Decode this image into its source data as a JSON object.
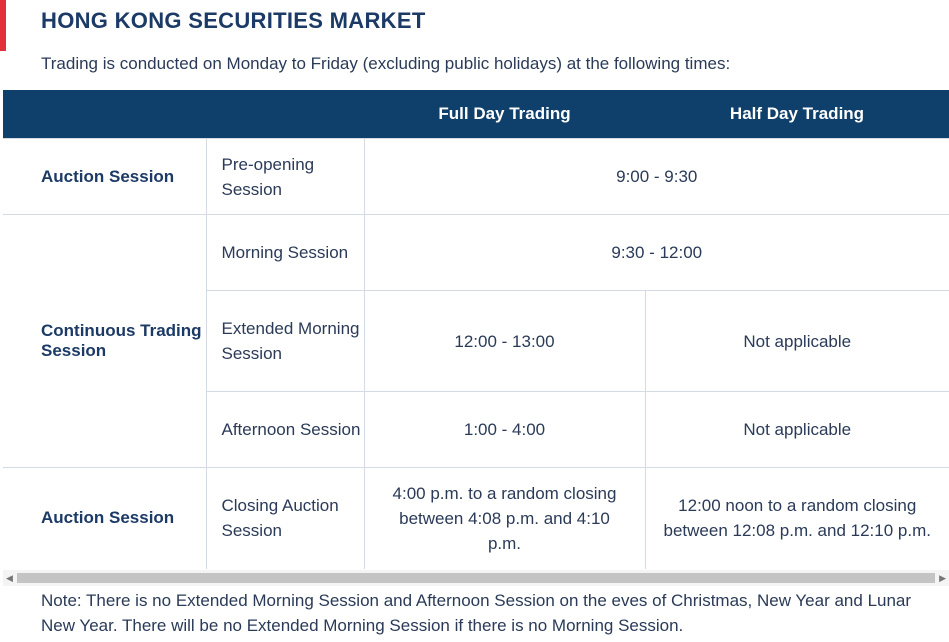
{
  "title": "HONG KONG SECURITIES MARKET",
  "intro": "Trading is conducted on Monday to Friday (excluding public holidays) at the following times:",
  "table": {
    "headers": {
      "col1": "",
      "col2": "",
      "full_day": "Full Day Trading",
      "half_day": "Half Day Trading"
    },
    "rows": {
      "preopen": {
        "session_group": "Auction Session",
        "session": "Pre-opening Session",
        "time": "9:00 - 9:30"
      },
      "morning": {
        "session_group": "Continuous Trading Session",
        "session": "Morning Session",
        "time": "9:30 - 12:00"
      },
      "extended": {
        "session": "Extended Morning Session",
        "full": "12:00 - 13:00",
        "half": "Not applicable"
      },
      "afternoon": {
        "session": "Afternoon Session",
        "full": "1:00 - 4:00",
        "half": "Not applicable"
      },
      "closing": {
        "session_group": "Auction Session",
        "session": "Closing Auction Session",
        "full": "4:00 p.m. to a random closing between 4:08 p.m. and 4:10 p.m.",
        "half": "12:00 noon to a random closing between 12:08 p.m. and 12:10 p.m."
      }
    }
  },
  "scrollbar": {
    "left_arrow": "◀",
    "right_arrow": "▶"
  },
  "note": "Note: There is no Extended Morning Session and Afternoon Session on the eves of Christmas, New Year and Lunar New Year. There will be no Extended Morning Session if there is no Morning Session.",
  "colors": {
    "accent": "#e0303c",
    "header_bg": "#0f3f6b",
    "title": "#1c3a66"
  }
}
